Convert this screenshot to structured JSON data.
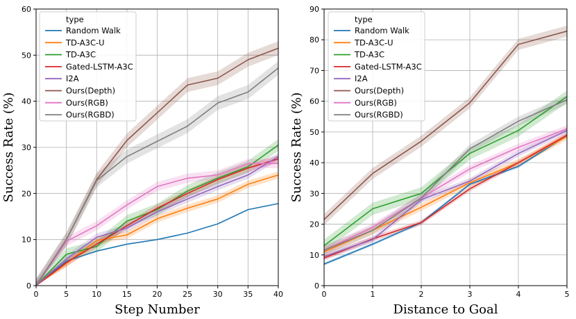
{
  "chart_data": [
    {
      "type": "line",
      "title": "",
      "xlabel": "Step Number",
      "ylabel": "Success Rate (%)",
      "xlim": [
        0,
        40
      ],
      "ylim": [
        0,
        60
      ],
      "xticks": [
        0,
        5,
        10,
        15,
        20,
        25,
        30,
        35,
        40
      ],
      "yticks": [
        0,
        10,
        20,
        30,
        40,
        50,
        60
      ],
      "grid": true,
      "legend_position": "top-left",
      "legend_title": "type",
      "x": [
        0,
        5,
        10,
        15,
        20,
        25,
        30,
        35,
        40
      ],
      "series": [
        {
          "name": "Random Walk",
          "color": "#1f77b4",
          "values": [
            0,
            5.3,
            7.5,
            9.0,
            10.0,
            11.4,
            13.4,
            16.5,
            17.8
          ],
          "band": 0
        },
        {
          "name": "TD-A3C-U",
          "color": "#ff7f0e",
          "values": [
            0,
            4.8,
            9.8,
            11.0,
            14.5,
            16.8,
            18.8,
            22.0,
            24.0
          ],
          "band": 0.8
        },
        {
          "name": "TD-A3C",
          "color": "#2ca02c",
          "values": [
            0,
            6.8,
            8.5,
            14.0,
            16.5,
            20.5,
            23.3,
            25.8,
            30.5
          ],
          "band": 1.3
        },
        {
          "name": "Gated-LSTM-A3C",
          "color": "#d62728",
          "values": [
            0,
            5.0,
            9.0,
            13.0,
            16.8,
            20.0,
            23.0,
            25.5,
            27.5
          ],
          "band": 0.8
        },
        {
          "name": "I2A",
          "color": "#9467bd",
          "values": [
            0,
            5.8,
            10.5,
            12.5,
            16.0,
            18.8,
            21.5,
            24.0,
            28.0
          ],
          "band": 0.8
        },
        {
          "name": "Ours(Depth)",
          "color": "#8c564b",
          "values": [
            0,
            10.0,
            23.0,
            31.5,
            37.5,
            43.5,
            45.0,
            49.0,
            51.5
          ],
          "band": 1.5
        },
        {
          "name": "Ours(RGB)",
          "color": "#e377c2",
          "values": [
            0,
            9.6,
            13.0,
            17.5,
            21.5,
            23.3,
            24.0,
            26.5,
            26.5
          ],
          "band": 1.0
        },
        {
          "name": "Ours(RGBD)",
          "color": "#7f7f7f",
          "values": [
            0,
            10.0,
            22.8,
            28.0,
            31.3,
            34.6,
            39.6,
            42.0,
            47.2
          ],
          "band": 1.5
        }
      ]
    },
    {
      "type": "line",
      "title": "",
      "xlabel": "Distance to Goal",
      "ylabel": "Success Rate (%)",
      "xlim": [
        0,
        5
      ],
      "ylim": [
        0,
        90
      ],
      "xticks": [
        0,
        1,
        2,
        3,
        4,
        5
      ],
      "yticks": [
        0,
        10,
        20,
        30,
        40,
        50,
        60,
        70,
        80,
        90
      ],
      "grid": true,
      "legend_position": "top-left",
      "legend_title": "type",
      "x": [
        0,
        1,
        2,
        3,
        4,
        5
      ],
      "series": [
        {
          "name": "Random Walk",
          "color": "#1f77b4",
          "values": [
            7.0,
            13.5,
            20.5,
            33.0,
            38.8,
            48.8
          ],
          "band": 0.5
        },
        {
          "name": "TD-A3C-U",
          "color": "#ff7f0e",
          "values": [
            11.0,
            18.0,
            25.5,
            33.5,
            40.0,
            48.5
          ],
          "band": 1.2
        },
        {
          "name": "TD-A3C",
          "color": "#2ca02c",
          "values": [
            13.0,
            25.0,
            30.0,
            43.0,
            50.5,
            61.5
          ],
          "band": 2.0
        },
        {
          "name": "Gated-LSTM-A3C",
          "color": "#d62728",
          "values": [
            9.0,
            15.2,
            20.5,
            31.5,
            40.0,
            49.0
          ],
          "band": 0.8
        },
        {
          "name": "I2A",
          "color": "#9467bd",
          "values": [
            9.5,
            15.0,
            28.0,
            34.0,
            43.0,
            50.5
          ],
          "band": 1.0
        },
        {
          "name": "Ours(Depth)",
          "color": "#8c564b",
          "values": [
            21.5,
            36.5,
            47.0,
            59.5,
            78.5,
            82.8
          ],
          "band": 1.8
        },
        {
          "name": "Ours(RGB)",
          "color": "#e377c2",
          "values": [
            11.5,
            19.0,
            28.5,
            38.0,
            45.0,
            51.0
          ],
          "band": 1.2
        },
        {
          "name": "Ours(RGBD)",
          "color": "#7f7f7f",
          "values": [
            11.5,
            18.0,
            28.5,
            44.5,
            53.5,
            60.5
          ],
          "band": 1.5
        }
      ]
    }
  ]
}
